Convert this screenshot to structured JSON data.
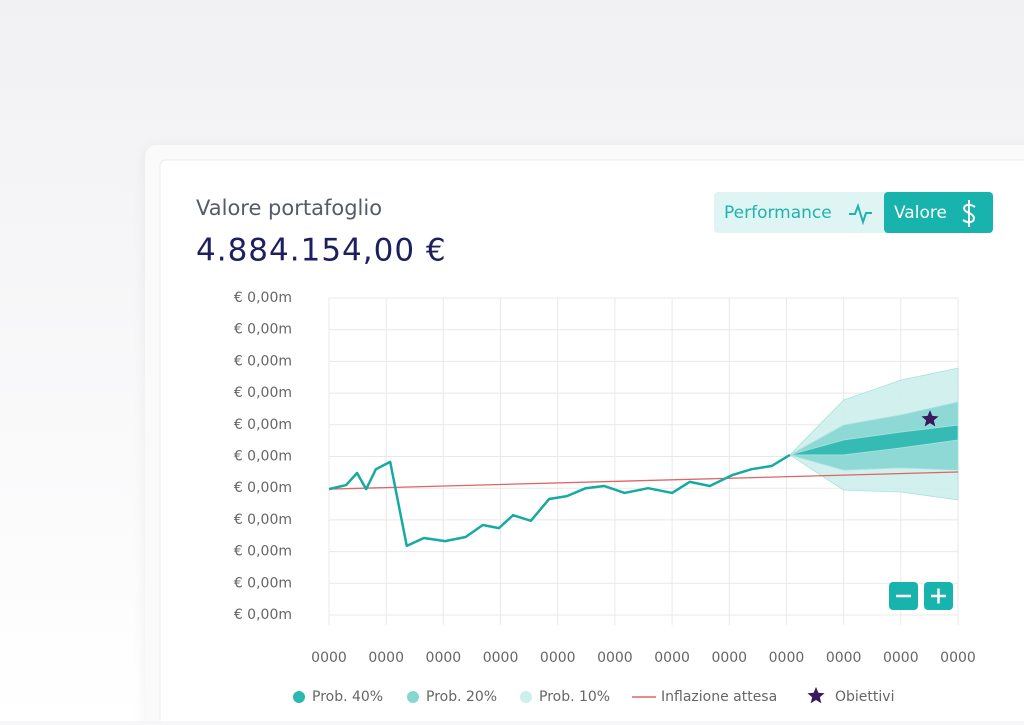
{
  "header": {
    "title": "Valore portafoglio",
    "value": "4.884.154,00 €"
  },
  "toggle": {
    "performance": "Performance",
    "valore": "Valore"
  },
  "chart_data": {
    "type": "line",
    "xlim": [
      0,
      11
    ],
    "xticks": [
      {
        "value": 0,
        "label": "0000"
      },
      {
        "value": 1,
        "label": "0000"
      },
      {
        "value": 2,
        "label": "0000"
      },
      {
        "value": 3,
        "label": "0000"
      },
      {
        "value": 4,
        "label": "0000"
      },
      {
        "value": 5,
        "label": "0000"
      },
      {
        "value": 6,
        "label": "0000"
      },
      {
        "value": 7,
        "label": "0000"
      },
      {
        "value": 8,
        "label": "0000"
      },
      {
        "value": 9,
        "label": "0000"
      },
      {
        "value": 10,
        "label": "0000"
      },
      {
        "value": 11,
        "label": "0000"
      }
    ],
    "ylim": [
      0,
      10
    ],
    "yticks": [
      {
        "value": 0,
        "label": "€ 0,00m"
      },
      {
        "value": 1,
        "label": "€ 0,00m"
      },
      {
        "value": 2,
        "label": "€ 0,00m"
      },
      {
        "value": 3,
        "label": "€ 0,00m"
      },
      {
        "value": 4,
        "label": "€ 0,00m"
      },
      {
        "value": 5,
        "label": "€ 0,00m"
      },
      {
        "value": 6,
        "label": "€ 0,00m"
      },
      {
        "value": 7,
        "label": "€ 0,00m"
      },
      {
        "value": 8,
        "label": "€ 0,00m"
      },
      {
        "value": 9,
        "label": "€ 0,00m"
      },
      {
        "value": 10,
        "label": "€ 0,00m"
      }
    ],
    "grid": true,
    "color": "#17aaa3",
    "x": [
      0,
      0.3,
      0.49,
      0.65,
      0.82,
      1.07,
      1.36,
      1.66,
      2.03,
      2.39,
      2.69,
      2.97,
      3.22,
      3.53,
      3.85,
      4.16,
      4.49,
      4.81,
      5.17,
      5.58,
      6.0,
      6.31,
      6.66,
      7.06,
      7.39,
      7.74,
      8.06
    ],
    "values": [
      3.97,
      4.1,
      4.48,
      3.97,
      4.6,
      4.83,
      2.18,
      2.43,
      2.33,
      2.46,
      2.84,
      2.74,
      3.15,
      2.97,
      3.66,
      3.75,
      4.0,
      4.07,
      3.85,
      4.0,
      3.85,
      4.2,
      4.07,
      4.42,
      4.6,
      4.7,
      5.05
    ],
    "bands": [
      {
        "name": "Prob. 40%",
        "color": "#2cb7b0",
        "x": [
          8.06,
          9,
          10,
          11
        ],
        "low": [
          5.05,
          5.05,
          5.27,
          5.52
        ],
        "high": [
          5.05,
          5.52,
          5.77,
          5.99
        ]
      },
      {
        "name": "Prob. 20%",
        "color": "#86d6d1",
        "x": [
          8.06,
          9,
          10,
          11
        ],
        "low": [
          5.05,
          4.57,
          4.64,
          4.57
        ],
        "high": [
          5.05,
          5.99,
          6.31,
          6.72
        ]
      },
      {
        "name": "Prob. 10%",
        "color": "#cdeeeb",
        "x": [
          8.06,
          9,
          10,
          11
        ],
        "low": [
          5.05,
          3.94,
          3.88,
          3.63
        ],
        "high": [
          5.05,
          6.78,
          7.41,
          7.79
        ]
      }
    ],
    "series": [
      {
        "name": "Inflazione attesa",
        "color": "#e06464",
        "x": [
          0,
          11
        ],
        "values": [
          3.97,
          4.51
        ]
      }
    ],
    "markers": [
      {
        "name": "Obiettivi",
        "color": "#3a1a5c",
        "x": [
          10.51
        ],
        "values": [
          6.18
        ]
      }
    ]
  }
}
